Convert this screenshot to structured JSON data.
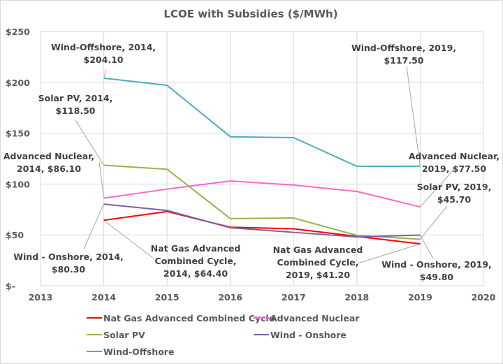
{
  "chart_data": {
    "type": "line",
    "title": "LCOE with Subsidies ($/MWh)",
    "xlabel": "",
    "ylabel": "",
    "x": [
      2014,
      2015,
      2016,
      2017,
      2018,
      2019
    ],
    "xlim": [
      2013,
      2020
    ],
    "ylim": [
      0,
      250
    ],
    "x_ticks": [
      "2013",
      "2014",
      "2015",
      "2016",
      "2017",
      "2018",
      "2019",
      "2020"
    ],
    "y_ticks": [
      {
        "value": 0,
        "label": "$-"
      },
      {
        "value": 50,
        "label": "$50"
      },
      {
        "value": 100,
        "label": "$100"
      },
      {
        "value": 150,
        "label": "$150"
      },
      {
        "value": 200,
        "label": "$200"
      },
      {
        "value": 250,
        "label": "$250"
      }
    ],
    "grid": true,
    "legend_position": "bottom",
    "series": [
      {
        "name": "Nat Gas Advanced Combined Cycle",
        "color": "#ff0000",
        "values": [
          64.4,
          73.0,
          57.5,
          56.0,
          48.5,
          41.2
        ]
      },
      {
        "name": "Advanced Nuclear",
        "color": "#ff66cc",
        "values": [
          86.1,
          95.0,
          103.0,
          99.0,
          92.7,
          77.5
        ]
      },
      {
        "name": "Solar PV",
        "color": "#92b550",
        "values": [
          118.5,
          114.5,
          66.0,
          66.6,
          49.5,
          45.7
        ]
      },
      {
        "name": "Wind - Onshore",
        "color": "#7f60a0",
        "values": [
          80.3,
          74.0,
          57.0,
          52.5,
          48.0,
          49.8
        ]
      },
      {
        "name": "Wind-Offshore",
        "color": "#4bacc6",
        "values": [
          204.1,
          197.0,
          146.5,
          145.6,
          117.4,
          117.5
        ]
      }
    ],
    "annotations": [
      {
        "series": "Wind-Offshore",
        "x": 2014,
        "lines": [
          "Wind-Offshore, 2014,",
          "$204.10"
        ]
      },
      {
        "series": "Solar PV",
        "x": 2014,
        "lines": [
          "Solar PV, 2014,",
          "$118.50"
        ]
      },
      {
        "series": "Advanced Nuclear",
        "x": 2014,
        "lines": [
          "Advanced Nuclear,",
          "2014,  $86.10"
        ]
      },
      {
        "series": "Wind - Onshore",
        "x": 2014,
        "lines": [
          "Wind - Onshore, 2014,",
          "$80.30"
        ]
      },
      {
        "series": "Nat Gas Advanced Combined Cycle",
        "x": 2014,
        "lines": [
          "Nat Gas Advanced",
          "Combined Cycle,",
          "2014,  $64.40"
        ]
      },
      {
        "series": "Wind-Offshore",
        "x": 2019,
        "lines": [
          "Wind-Offshore, 2019,",
          "$117.50"
        ]
      },
      {
        "series": "Advanced Nuclear",
        "x": 2019,
        "lines": [
          "Advanced Nuclear,",
          "2019,  $77.50"
        ]
      },
      {
        "series": "Solar PV",
        "x": 2019,
        "lines": [
          "Solar PV, 2019,",
          "$45.70"
        ]
      },
      {
        "series": "Nat Gas Advanced Combined Cycle",
        "x": 2019,
        "lines": [
          "Nat Gas Advanced",
          "Combined Cycle,",
          "2019,  $41.20"
        ]
      },
      {
        "series": "Wind - Onshore",
        "x": 2019,
        "lines": [
          "Wind - Onshore, 2019,",
          "$49.80"
        ]
      }
    ]
  }
}
